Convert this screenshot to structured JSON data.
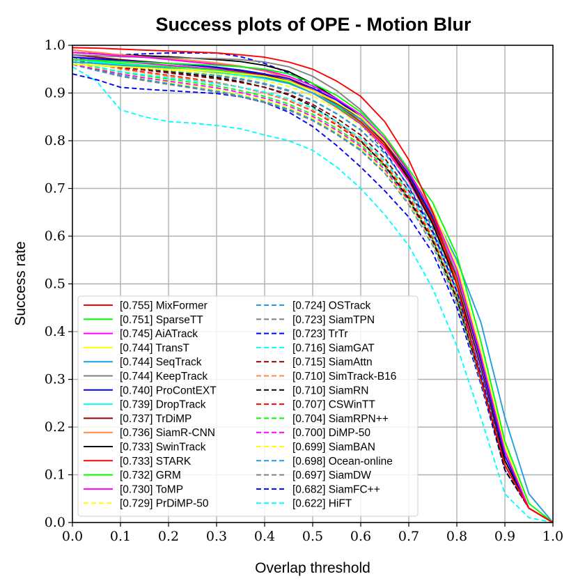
{
  "chart_data": {
    "type": "line",
    "title": "Success plots of OPE - Motion Blur",
    "xlabel": "Overlap threshold",
    "ylabel": "Success rate",
    "xlim": [
      0,
      1
    ],
    "ylim": [
      0,
      1.0
    ],
    "x_ticks": [
      "0.0",
      "0.1",
      "0.2",
      "0.3",
      "0.4",
      "0.5",
      "0.6",
      "0.7",
      "0.8",
      "0.9",
      "1.0"
    ],
    "y_ticks": [
      "0.0",
      "0.1",
      "0.2",
      "0.3",
      "0.4",
      "0.5",
      "0.6",
      "0.7",
      "0.8",
      "0.9",
      "1.0"
    ],
    "grid": true,
    "legend_position": "lower-left",
    "x": [
      0,
      0.05,
      0.1,
      0.15,
      0.2,
      0.25,
      0.3,
      0.35,
      0.4,
      0.45,
      0.5,
      0.55,
      0.6,
      0.65,
      0.7,
      0.75,
      0.8,
      0.85,
      0.9,
      0.95,
      1.0
    ],
    "series": [
      {
        "name": "[0.755] MixFormer",
        "color": "#ff0000",
        "dash": "solid",
        "values": [
          0.995,
          0.994,
          0.992,
          0.99,
          0.988,
          0.986,
          0.984,
          0.98,
          0.975,
          0.965,
          0.95,
          0.925,
          0.893,
          0.84,
          0.76,
          0.65,
          0.5,
          0.3,
          0.12,
          0.03,
          0.0
        ]
      },
      {
        "name": "[0.751] SparseTT",
        "color": "#00ff00",
        "dash": "solid",
        "values": [
          0.97,
          0.968,
          0.966,
          0.964,
          0.962,
          0.96,
          0.958,
          0.955,
          0.95,
          0.94,
          0.92,
          0.895,
          0.86,
          0.81,
          0.74,
          0.67,
          0.56,
          0.38,
          0.17,
          0.04,
          0.0
        ]
      },
      {
        "name": "[0.745] AiATrack",
        "color": "#ff00ff",
        "dash": "solid",
        "values": [
          0.985,
          0.982,
          0.978,
          0.975,
          0.97,
          0.965,
          0.96,
          0.955,
          0.948,
          0.935,
          0.915,
          0.888,
          0.855,
          0.805,
          0.735,
          0.65,
          0.53,
          0.35,
          0.15,
          0.03,
          0.0
        ]
      },
      {
        "name": "[0.744] TransT",
        "color": "#ffff00",
        "dash": "solid",
        "values": [
          0.96,
          0.958,
          0.955,
          0.953,
          0.95,
          0.948,
          0.945,
          0.94,
          0.935,
          0.925,
          0.905,
          0.88,
          0.85,
          0.8,
          0.735,
          0.655,
          0.54,
          0.36,
          0.16,
          0.03,
          0.0
        ]
      },
      {
        "name": "[0.744] SeqTrack",
        "color": "#1f9fdf",
        "dash": "solid",
        "values": [
          0.965,
          0.962,
          0.958,
          0.955,
          0.952,
          0.948,
          0.944,
          0.94,
          0.932,
          0.92,
          0.9,
          0.875,
          0.845,
          0.8,
          0.735,
          0.65,
          0.55,
          0.42,
          0.22,
          0.06,
          0.0
        ]
      },
      {
        "name": "[0.744] KeepTrack",
        "color": "#808080",
        "dash": "solid",
        "values": [
          0.98,
          0.978,
          0.976,
          0.975,
          0.974,
          0.973,
          0.972,
          0.97,
          0.965,
          0.955,
          0.935,
          0.905,
          0.865,
          0.81,
          0.735,
          0.645,
          0.52,
          0.35,
          0.15,
          0.03,
          0.0
        ]
      },
      {
        "name": "[0.740] ProContEXT",
        "color": "#0000ff",
        "dash": "solid",
        "values": [
          0.975,
          0.972,
          0.968,
          0.965,
          0.962,
          0.958,
          0.954,
          0.948,
          0.94,
          0.93,
          0.91,
          0.885,
          0.85,
          0.8,
          0.73,
          0.64,
          0.52,
          0.34,
          0.14,
          0.03,
          0.0
        ]
      },
      {
        "name": "[0.739] DropTrack",
        "color": "#00ffff",
        "dash": "solid",
        "values": [
          0.97,
          0.965,
          0.96,
          0.956,
          0.952,
          0.948,
          0.943,
          0.937,
          0.93,
          0.92,
          0.9,
          0.875,
          0.845,
          0.8,
          0.73,
          0.64,
          0.52,
          0.35,
          0.15,
          0.03,
          0.0
        ]
      },
      {
        "name": "[0.737] TrDiMP",
        "color": "#8b0000",
        "dash": "solid",
        "values": [
          0.98,
          0.975,
          0.97,
          0.966,
          0.962,
          0.958,
          0.953,
          0.946,
          0.938,
          0.926,
          0.905,
          0.878,
          0.845,
          0.795,
          0.725,
          0.635,
          0.515,
          0.34,
          0.14,
          0.03,
          0.0
        ]
      },
      {
        "name": "[0.736] SiamR-CNN",
        "color": "#ff8c42",
        "dash": "solid",
        "values": [
          0.99,
          0.985,
          0.98,
          0.976,
          0.972,
          0.968,
          0.963,
          0.956,
          0.946,
          0.932,
          0.91,
          0.88,
          0.845,
          0.795,
          0.725,
          0.635,
          0.51,
          0.335,
          0.14,
          0.03,
          0.0
        ]
      },
      {
        "name": "[0.733] SwinTrack",
        "color": "#000000",
        "dash": "solid",
        "values": [
          0.985,
          0.982,
          0.98,
          0.978,
          0.976,
          0.973,
          0.97,
          0.966,
          0.958,
          0.945,
          0.92,
          0.888,
          0.85,
          0.795,
          0.72,
          0.625,
          0.5,
          0.33,
          0.13,
          0.03,
          0.0
        ]
      },
      {
        "name": "[0.733] STARK",
        "color": "#ff0000",
        "dash": "solid",
        "values": [
          0.99,
          0.985,
          0.98,
          0.976,
          0.972,
          0.968,
          0.963,
          0.956,
          0.946,
          0.93,
          0.906,
          0.876,
          0.84,
          0.79,
          0.72,
          0.63,
          0.505,
          0.33,
          0.13,
          0.03,
          0.0
        ]
      },
      {
        "name": "[0.732] GRM",
        "color": "#00ff00",
        "dash": "solid",
        "values": [
          0.97,
          0.966,
          0.962,
          0.958,
          0.955,
          0.952,
          0.948,
          0.942,
          0.934,
          0.922,
          0.9,
          0.872,
          0.838,
          0.79,
          0.72,
          0.63,
          0.505,
          0.33,
          0.13,
          0.03,
          0.0
        ]
      },
      {
        "name": "[0.730] ToMP",
        "color": "#ff00ff",
        "dash": "solid",
        "values": [
          0.975,
          0.97,
          0.966,
          0.962,
          0.958,
          0.954,
          0.95,
          0.944,
          0.935,
          0.922,
          0.9,
          0.87,
          0.835,
          0.785,
          0.715,
          0.625,
          0.5,
          0.325,
          0.13,
          0.03,
          0.0
        ]
      },
      {
        "name": "[0.729] PrDiMP-50",
        "color": "#ffff00",
        "dash": "dashed",
        "values": [
          0.965,
          0.96,
          0.956,
          0.952,
          0.948,
          0.944,
          0.94,
          0.934,
          0.926,
          0.914,
          0.894,
          0.866,
          0.832,
          0.782,
          0.713,
          0.623,
          0.498,
          0.325,
          0.13,
          0.03,
          0.0
        ]
      },
      {
        "name": "[0.724] OSTrack",
        "color": "#1f9fdf",
        "dash": "dashed",
        "values": [
          0.97,
          0.964,
          0.958,
          0.952,
          0.947,
          0.942,
          0.937,
          0.93,
          0.92,
          0.906,
          0.885,
          0.857,
          0.823,
          0.774,
          0.706,
          0.618,
          0.495,
          0.322,
          0.13,
          0.03,
          0.0
        ]
      },
      {
        "name": "[0.723] SiamTPN",
        "color": "#808080",
        "dash": "dashed",
        "values": [
          0.975,
          0.968,
          0.96,
          0.954,
          0.948,
          0.942,
          0.936,
          0.928,
          0.918,
          0.904,
          0.884,
          0.856,
          0.822,
          0.773,
          0.705,
          0.616,
          0.492,
          0.32,
          0.13,
          0.03,
          0.0
        ]
      },
      {
        "name": "[0.723] TrTr",
        "color": "#0000ff",
        "dash": "dashed",
        "values": [
          0.985,
          0.982,
          0.98,
          0.982,
          0.984,
          0.984,
          0.984,
          0.976,
          0.962,
          0.942,
          0.915,
          0.878,
          0.835,
          0.778,
          0.703,
          0.61,
          0.485,
          0.31,
          0.12,
          0.03,
          0.0
        ]
      },
      {
        "name": "[0.716] SiamGAT",
        "color": "#00ffff",
        "dash": "dashed",
        "values": [
          0.965,
          0.955,
          0.945,
          0.938,
          0.932,
          0.926,
          0.92,
          0.912,
          0.902,
          0.888,
          0.868,
          0.84,
          0.806,
          0.758,
          0.692,
          0.606,
          0.485,
          0.315,
          0.12,
          0.03,
          0.0
        ]
      },
      {
        "name": "[0.715] SiamAttn",
        "color": "#8b0000",
        "dash": "dashed",
        "values": [
          0.97,
          0.962,
          0.954,
          0.948,
          0.942,
          0.936,
          0.93,
          0.922,
          0.912,
          0.898,
          0.876,
          0.847,
          0.812,
          0.763,
          0.695,
          0.607,
          0.484,
          0.312,
          0.12,
          0.03,
          0.0
        ]
      },
      {
        "name": "[0.710] SimTrack-B16",
        "color": "#ff8c42",
        "dash": "dashed",
        "values": [
          0.97,
          0.96,
          0.95,
          0.942,
          0.935,
          0.928,
          0.921,
          0.912,
          0.9,
          0.885,
          0.864,
          0.836,
          0.802,
          0.754,
          0.687,
          0.6,
          0.478,
          0.308,
          0.12,
          0.03,
          0.0
        ]
      },
      {
        "name": "[0.710] SiamRN",
        "color": "#000000",
        "dash": "dashed",
        "values": [
          0.975,
          0.966,
          0.958,
          0.951,
          0.945,
          0.939,
          0.933,
          0.924,
          0.912,
          0.896,
          0.872,
          0.84,
          0.8,
          0.748,
          0.678,
          0.59,
          0.468,
          0.3,
          0.11,
          0.03,
          0.0
        ]
      },
      {
        "name": "[0.707] CSWinTT",
        "color": "#ff0000",
        "dash": "dashed",
        "values": [
          0.975,
          0.963,
          0.952,
          0.944,
          0.937,
          0.93,
          0.922,
          0.912,
          0.9,
          0.884,
          0.862,
          0.833,
          0.798,
          0.75,
          0.683,
          0.596,
          0.475,
          0.305,
          0.12,
          0.03,
          0.0
        ]
      },
      {
        "name": "[0.704] SiamRPN++",
        "color": "#00ff00",
        "dash": "dashed",
        "values": [
          0.965,
          0.954,
          0.944,
          0.936,
          0.929,
          0.922,
          0.915,
          0.905,
          0.893,
          0.877,
          0.855,
          0.826,
          0.792,
          0.745,
          0.678,
          0.592,
          0.472,
          0.303,
          0.12,
          0.03,
          0.0
        ]
      },
      {
        "name": "[0.700] DiMP-50",
        "color": "#ff00ff",
        "dash": "dashed",
        "values": [
          0.96,
          0.95,
          0.94,
          0.932,
          0.925,
          0.918,
          0.911,
          0.901,
          0.889,
          0.873,
          0.851,
          0.822,
          0.788,
          0.74,
          0.674,
          0.588,
          0.468,
          0.3,
          0.12,
          0.03,
          0.0
        ]
      },
      {
        "name": "[0.699] SiamBAN",
        "color": "#ffff00",
        "dash": "dashed",
        "values": [
          0.965,
          0.952,
          0.94,
          0.931,
          0.923,
          0.915,
          0.907,
          0.897,
          0.885,
          0.869,
          0.847,
          0.818,
          0.784,
          0.736,
          0.67,
          0.585,
          0.465,
          0.298,
          0.12,
          0.03,
          0.0
        ]
      },
      {
        "name": "[0.698] Ocean-online",
        "color": "#1f9fdf",
        "dash": "dashed",
        "values": [
          0.96,
          0.948,
          0.937,
          0.928,
          0.92,
          0.912,
          0.904,
          0.894,
          0.882,
          0.866,
          0.844,
          0.815,
          0.781,
          0.734,
          0.668,
          0.583,
          0.463,
          0.296,
          0.12,
          0.03,
          0.0
        ]
      },
      {
        "name": "[0.697] SiamDW",
        "color": "#808080",
        "dash": "dashed",
        "values": [
          0.96,
          0.947,
          0.935,
          0.926,
          0.918,
          0.91,
          0.902,
          0.892,
          0.88,
          0.864,
          0.842,
          0.813,
          0.779,
          0.732,
          0.666,
          0.58,
          0.46,
          0.294,
          0.12,
          0.03,
          0.0
        ]
      },
      {
        "name": "[0.682] SiamFC++",
        "color": "#0000ff",
        "dash": "dashed",
        "values": [
          0.94,
          0.928,
          0.912,
          0.908,
          0.905,
          0.902,
          0.899,
          0.892,
          0.88,
          0.86,
          0.83,
          0.79,
          0.745,
          0.695,
          0.64,
          0.565,
          0.45,
          0.29,
          0.11,
          0.03,
          0.0
        ]
      },
      {
        "name": "[0.622] HiFT",
        "color": "#00ffff",
        "dash": "dashed",
        "values": [
          0.955,
          0.925,
          0.865,
          0.85,
          0.84,
          0.837,
          0.832,
          0.825,
          0.812,
          0.8,
          0.78,
          0.745,
          0.7,
          0.645,
          0.58,
          0.49,
          0.37,
          0.22,
          0.06,
          0.01,
          0.0
        ]
      }
    ]
  }
}
